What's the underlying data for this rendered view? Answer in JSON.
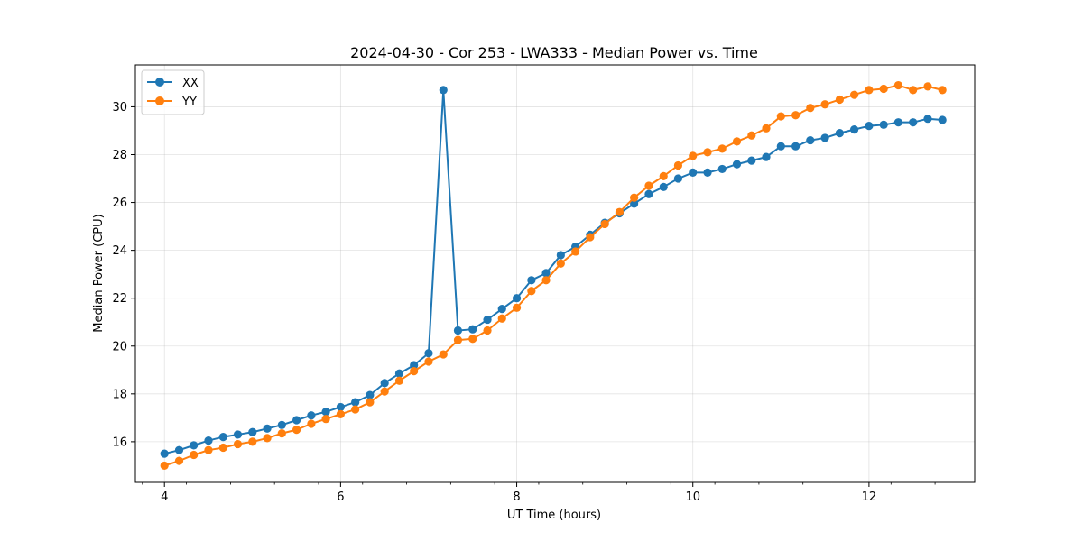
{
  "chart_data": {
    "type": "line",
    "title": "2024-04-30 - Cor 253 - LWA333 - Median Power vs. Time",
    "xlabel": "UT Time (hours)",
    "ylabel": "Median Power (CPU)",
    "xlim": [
      3.67,
      13.2
    ],
    "ylim": [
      14.3,
      31.75
    ],
    "xticks": [
      4,
      6,
      8,
      10,
      12
    ],
    "xtick_labels": [
      "4",
      "6",
      "8",
      "10",
      "12"
    ],
    "yticks": [
      16,
      18,
      20,
      22,
      24,
      26,
      28,
      30
    ],
    "ytick_labels": [
      "16",
      "18",
      "20",
      "22",
      "24",
      "26",
      "28",
      "30"
    ],
    "grid": true,
    "legend": "top-left",
    "x": [
      4.0,
      4.167,
      4.333,
      4.5,
      4.667,
      4.833,
      5.0,
      5.167,
      5.333,
      5.5,
      5.667,
      5.833,
      6.0,
      6.167,
      6.333,
      6.5,
      6.667,
      6.833,
      7.0,
      7.167,
      7.333,
      7.5,
      7.667,
      7.833,
      8.0,
      8.167,
      8.333,
      8.5,
      8.667,
      8.833,
      9.0,
      9.167,
      9.333,
      9.5,
      9.667,
      9.833,
      10.0,
      10.167,
      10.333,
      10.5,
      10.667,
      10.833,
      11.0,
      11.167,
      11.333,
      11.5,
      11.667,
      11.833,
      12.0,
      12.167,
      12.333,
      12.5,
      12.667,
      12.833
    ],
    "series": [
      {
        "name": "XX",
        "color": "#1f77b4",
        "values": [
          15.5,
          15.65,
          15.85,
          16.05,
          16.2,
          16.3,
          16.4,
          16.55,
          16.7,
          16.9,
          17.1,
          17.25,
          17.45,
          17.65,
          17.95,
          18.45,
          18.85,
          19.2,
          19.7,
          30.7,
          20.65,
          20.7,
          21.1,
          21.55,
          22.0,
          22.75,
          23.05,
          23.8,
          24.15,
          24.65,
          25.15,
          25.55,
          25.95,
          26.35,
          26.65,
          27.0,
          27.25,
          27.25,
          27.4,
          27.6,
          27.75,
          27.9,
          28.35,
          28.35,
          28.6,
          28.7,
          28.9,
          29.05,
          29.2,
          29.25,
          29.35,
          29.35,
          29.5,
          29.45
        ]
      },
      {
        "name": "YY",
        "color": "#ff7f0e",
        "values": [
          15.0,
          15.2,
          15.45,
          15.65,
          15.75,
          15.9,
          16.0,
          16.15,
          16.35,
          16.5,
          16.75,
          16.95,
          17.15,
          17.35,
          17.65,
          18.1,
          18.55,
          18.95,
          19.35,
          19.65,
          20.25,
          20.3,
          20.65,
          21.15,
          21.6,
          22.3,
          22.75,
          23.45,
          23.95,
          24.55,
          25.1,
          25.6,
          26.2,
          26.7,
          27.1,
          27.55,
          27.95,
          28.1,
          28.25,
          28.55,
          28.8,
          29.1,
          29.6,
          29.65,
          29.95,
          30.1,
          30.3,
          30.5,
          30.7,
          30.75,
          30.9,
          30.7,
          30.85,
          30.7
        ]
      }
    ]
  }
}
